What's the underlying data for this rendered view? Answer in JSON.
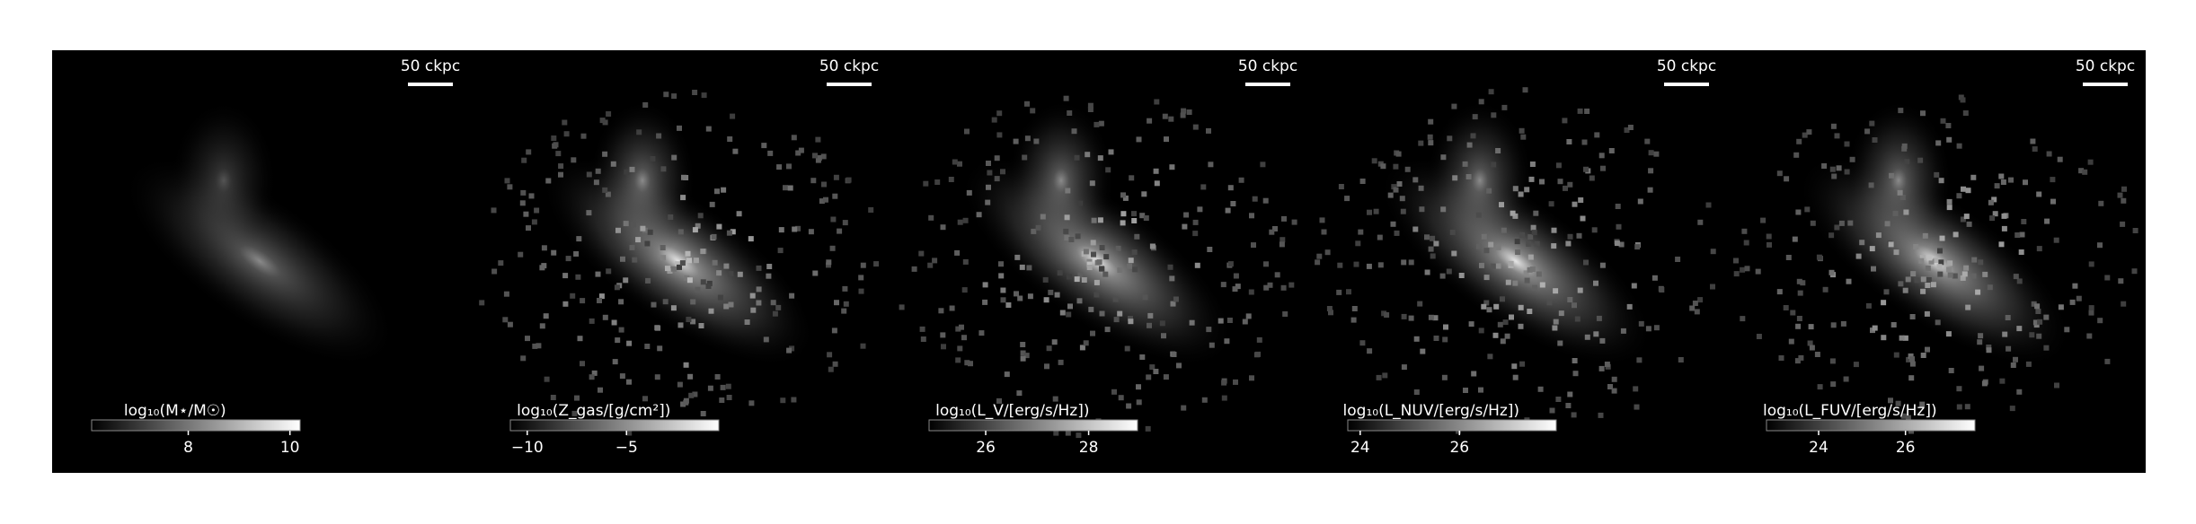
{
  "chart_data": [
    {
      "type": "image",
      "scalebar_label": "50 ckpc",
      "colorbar_label": "log₁₀(M⋆/M☉)",
      "clim": [
        6.1,
        10.2
      ],
      "cticks": [
        8,
        10
      ]
    },
    {
      "type": "image",
      "scalebar_label": "50 ckpc",
      "colorbar_label": "log₁₀(Z_gas/[g/cm²])",
      "clim": [
        -10.85,
        -0.35
      ],
      "cticks": [
        {
          "value": -10,
          "label": "−10"
        },
        {
          "value": -5,
          "label": "−5"
        }
      ]
    },
    {
      "type": "image",
      "scalebar_label": "50 ckpc",
      "colorbar_label": "log₁₀(L_V/[erg/s/Hz])",
      "clim": [
        24.9,
        28.95
      ],
      "cticks": [
        26,
        28
      ]
    },
    {
      "type": "image",
      "scalebar_label": "50 ckpc",
      "colorbar_label": "log₁₀(L_NUV/[erg/s/Hz])",
      "clim": [
        23.75,
        27.95
      ],
      "cticks": [
        24,
        26
      ]
    },
    {
      "type": "image",
      "scalebar_label": "50 ckpc",
      "colorbar_label": "log₁₀(L_FUV/[erg/s/Hz])",
      "clim": [
        22.8,
        27.6
      ],
      "cticks": [
        24,
        26
      ]
    }
  ]
}
